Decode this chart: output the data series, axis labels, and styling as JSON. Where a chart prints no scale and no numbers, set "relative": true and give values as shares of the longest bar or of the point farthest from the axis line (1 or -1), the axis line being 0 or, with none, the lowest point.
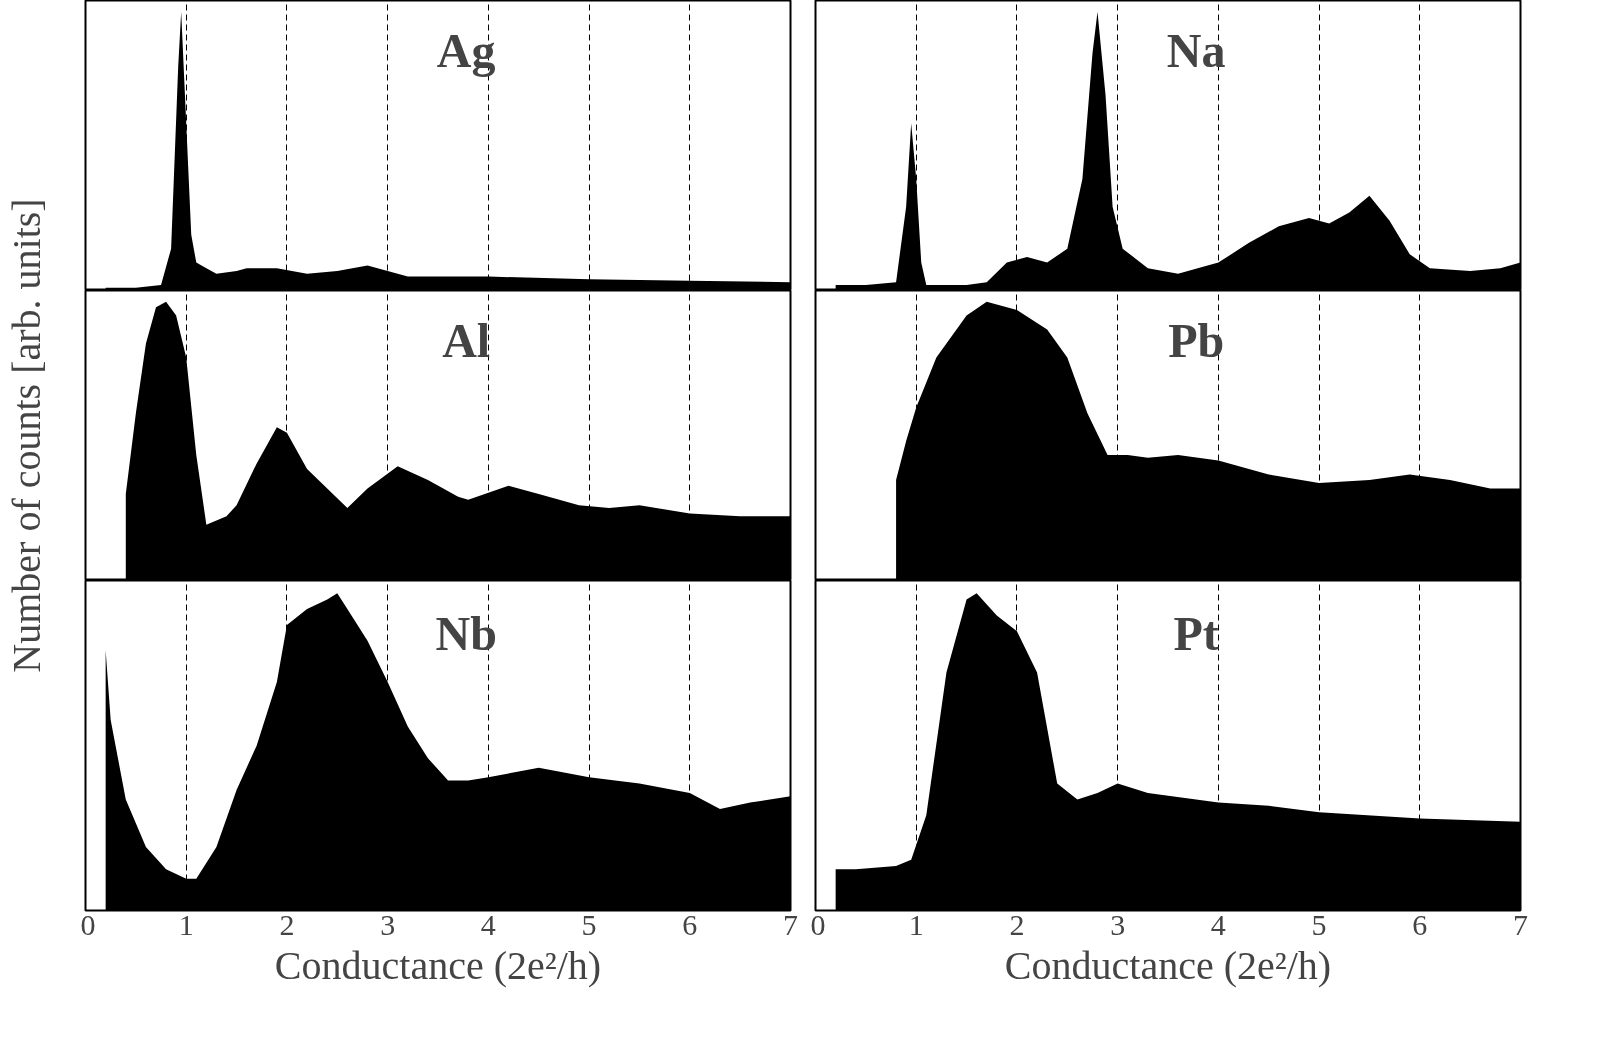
{
  "chart_data": [
    {
      "type": "area",
      "title": "Ag",
      "ylabel": "Number of counts [arb. units]",
      "relative": true,
      "color": "#000000",
      "xlim": [
        0,
        7
      ],
      "xticks": [
        0,
        1,
        2,
        3,
        4,
        5,
        6,
        7
      ],
      "grid": "x",
      "tick_labels": false,
      "x": [
        0.2,
        0.5,
        0.75,
        0.85,
        0.92,
        0.95,
        1.0,
        1.05,
        1.1,
        1.2,
        1.3,
        1.5,
        1.6,
        1.9,
        2.2,
        2.5,
        2.8,
        3.0,
        3.2,
        4.0,
        5.0,
        6.0,
        7.0
      ],
      "values": [
        0.01,
        0.01,
        0.02,
        0.15,
        0.8,
        1.0,
        0.6,
        0.2,
        0.1,
        0.08,
        0.06,
        0.07,
        0.08,
        0.08,
        0.06,
        0.07,
        0.09,
        0.07,
        0.05,
        0.05,
        0.04,
        0.035,
        0.03
      ]
    },
    {
      "type": "area",
      "title": "Na",
      "relative": true,
      "color": "#000000",
      "xlim": [
        0,
        7
      ],
      "xticks": [
        0,
        1,
        2,
        3,
        4,
        5,
        6,
        7
      ],
      "grid": "x",
      "tick_labels": false,
      "x": [
        0.2,
        0.5,
        0.8,
        0.9,
        0.95,
        1.0,
        1.05,
        1.1,
        1.5,
        1.7,
        1.9,
        2.1,
        2.3,
        2.5,
        2.65,
        2.75,
        2.8,
        2.88,
        2.95,
        3.05,
        3.3,
        3.6,
        4.0,
        4.3,
        4.6,
        4.9,
        5.1,
        5.3,
        5.5,
        5.7,
        5.9,
        6.1,
        6.5,
        6.8,
        7.0
      ],
      "values": [
        0.02,
        0.02,
        0.03,
        0.3,
        0.6,
        0.4,
        0.1,
        0.02,
        0.02,
        0.03,
        0.1,
        0.12,
        0.1,
        0.15,
        0.4,
        0.85,
        1.0,
        0.7,
        0.3,
        0.15,
        0.08,
        0.06,
        0.1,
        0.17,
        0.23,
        0.26,
        0.24,
        0.28,
        0.34,
        0.25,
        0.13,
        0.08,
        0.07,
        0.08,
        0.1
      ]
    },
    {
      "type": "area",
      "title": "Al",
      "relative": true,
      "color": "#000000",
      "xlim": [
        0,
        7
      ],
      "xticks": [
        0,
        1,
        2,
        3,
        4,
        5,
        6,
        7
      ],
      "grid": "x",
      "tick_labels": false,
      "x": [
        0.4,
        0.5,
        0.6,
        0.7,
        0.8,
        0.9,
        1.0,
        1.1,
        1.2,
        1.4,
        1.5,
        1.7,
        1.9,
        2.0,
        2.2,
        2.4,
        2.6,
        2.8,
        3.1,
        3.4,
        3.7,
        3.8,
        4.2,
        4.5,
        4.9,
        5.2,
        5.5,
        6.0,
        6.5,
        7.0
      ],
      "values": [
        0.31,
        0.6,
        0.85,
        0.98,
        1.0,
        0.95,
        0.8,
        0.45,
        0.2,
        0.23,
        0.27,
        0.42,
        0.55,
        0.53,
        0.4,
        0.33,
        0.26,
        0.33,
        0.41,
        0.36,
        0.3,
        0.29,
        0.34,
        0.31,
        0.27,
        0.26,
        0.27,
        0.24,
        0.23,
        0.23
      ]
    },
    {
      "type": "area",
      "title": "Pb",
      "relative": true,
      "color": "#000000",
      "xlim": [
        0,
        7
      ],
      "xticks": [
        0,
        1,
        2,
        3,
        4,
        5,
        6,
        7
      ],
      "grid": "x",
      "tick_labels": false,
      "x": [
        0.8,
        0.9,
        1.0,
        1.2,
        1.5,
        1.7,
        2.0,
        2.3,
        2.5,
        2.7,
        2.9,
        3.1,
        3.3,
        3.6,
        4.0,
        4.5,
        5.0,
        5.5,
        5.9,
        6.3,
        6.7,
        7.0
      ],
      "values": [
        0.36,
        0.5,
        0.62,
        0.8,
        0.95,
        1.0,
        0.97,
        0.9,
        0.8,
        0.6,
        0.45,
        0.45,
        0.44,
        0.45,
        0.43,
        0.38,
        0.35,
        0.36,
        0.38,
        0.36,
        0.33,
        0.33
      ]
    },
    {
      "type": "area",
      "title": "Nb",
      "xlabel": "Conductance (2e²/h)",
      "relative": true,
      "color": "#000000",
      "xlim": [
        0,
        7
      ],
      "xticks": [
        0,
        1,
        2,
        3,
        4,
        5,
        6,
        7
      ],
      "grid": "x",
      "tick_labels": "x",
      "x": [
        0.2,
        0.25,
        0.4,
        0.6,
        0.8,
        1.0,
        1.1,
        1.3,
        1.5,
        1.7,
        1.9,
        2.0,
        2.2,
        2.4,
        2.5,
        2.6,
        2.8,
        3.0,
        3.2,
        3.4,
        3.6,
        3.8,
        4.0,
        4.5,
        5.0,
        5.5,
        6.0,
        6.3,
        6.6,
        7.0
      ],
      "values": [
        0.82,
        0.6,
        0.35,
        0.2,
        0.13,
        0.1,
        0.1,
        0.2,
        0.38,
        0.52,
        0.72,
        0.9,
        0.95,
        0.98,
        1.0,
        0.95,
        0.85,
        0.72,
        0.58,
        0.48,
        0.41,
        0.41,
        0.42,
        0.45,
        0.42,
        0.4,
        0.37,
        0.32,
        0.34,
        0.36
      ]
    },
    {
      "type": "area",
      "title": "Pt",
      "xlabel": "Conductance (2e²/h)",
      "relative": true,
      "color": "#000000",
      "xlim": [
        0,
        7
      ],
      "xticks": [
        0,
        1,
        2,
        3,
        4,
        5,
        6,
        7
      ],
      "grid": "x",
      "tick_labels": "x",
      "x": [
        0.2,
        0.4,
        0.8,
        0.95,
        1.1,
        1.3,
        1.5,
        1.6,
        1.8,
        2.0,
        2.2,
        2.4,
        2.6,
        2.8,
        3.0,
        3.3,
        4.0,
        4.5,
        5.0,
        6.0,
        7.0
      ],
      "values": [
        0.13,
        0.13,
        0.14,
        0.16,
        0.3,
        0.75,
        0.98,
        1.0,
        0.93,
        0.88,
        0.75,
        0.4,
        0.35,
        0.37,
        0.4,
        0.37,
        0.34,
        0.33,
        0.31,
        0.29,
        0.28
      ]
    }
  ]
}
